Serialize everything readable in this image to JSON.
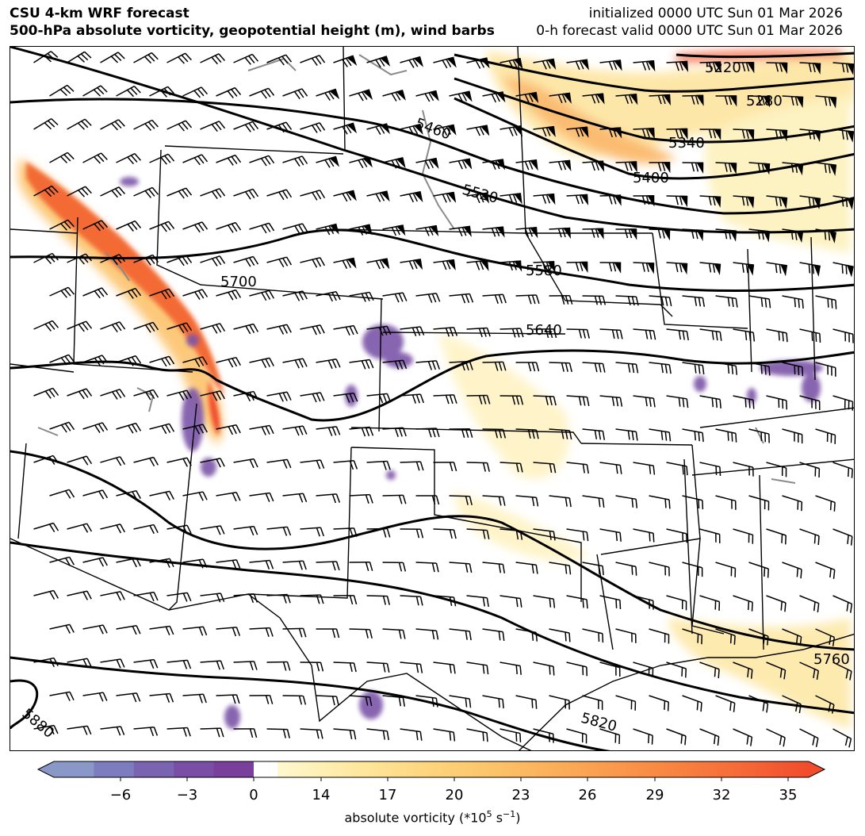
{
  "header": {
    "title_line1": "CSU 4-km WRF forecast",
    "title_line2": "500-hPa absolute vorticity, geopotential height (m), wind barbs",
    "init_line": "initialized 0000 UTC Sun 01 Mar 2026",
    "valid_line": "0-h forecast valid 0000 UTC Sun 01 Mar 2026"
  },
  "contours": {
    "labels": [
      "5220",
      "5280",
      "5340",
      "5400",
      "5460",
      "5520",
      "5580",
      "5640",
      "5700",
      "5760",
      "5820",
      "5880"
    ]
  },
  "colorbar": {
    "tick_labels": [
      "−6",
      "−3",
      "0",
      "14",
      "17",
      "20",
      "23",
      "26",
      "29",
      "32",
      "35"
    ],
    "label_text": "absolute vorticity (*10",
    "label_sup": "5",
    "label_unit": " s",
    "label_unit_sup": "−1",
    "label_close": ")",
    "negative_colors": [
      "#8a98c8",
      "#7d7cbe",
      "#7a63b0",
      "#7a4ea5",
      "#7a3f9a"
    ],
    "positive_colors": [
      "#fff8d0",
      "#fee9a0",
      "#fdd57c",
      "#fcc064",
      "#fba552",
      "#f98a43",
      "#f66d38",
      "#f14c2c"
    ]
  }
}
